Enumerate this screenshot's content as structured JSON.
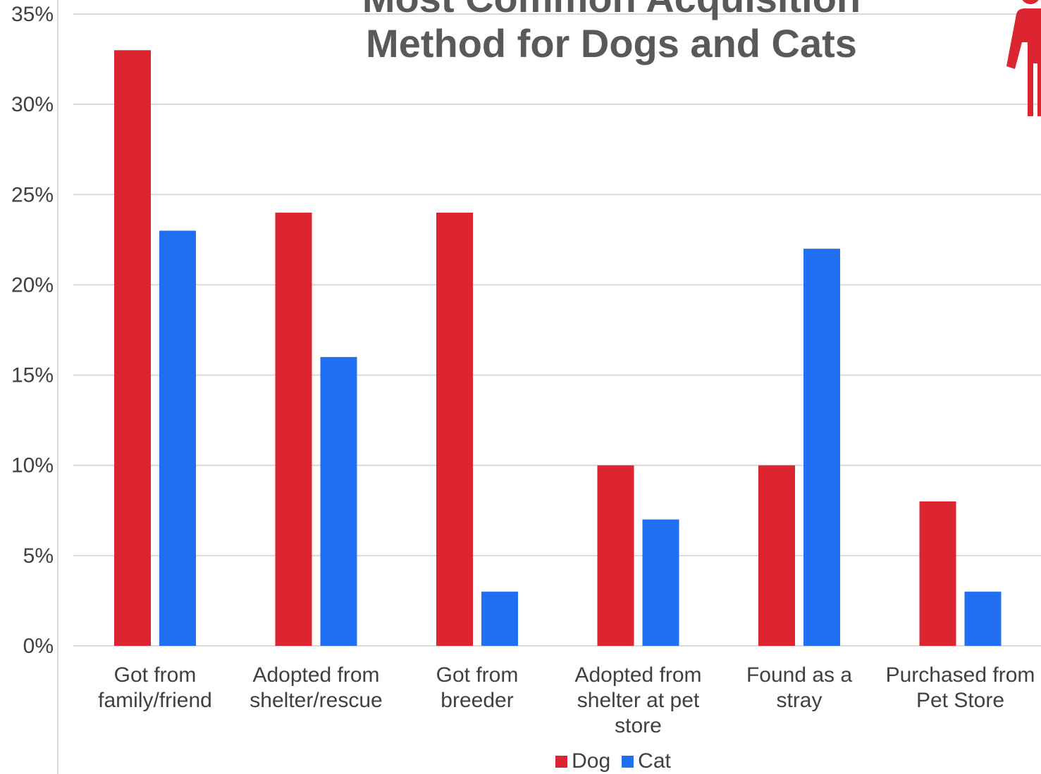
{
  "colors": {
    "dog": "#dc2531",
    "cat": "#216ff2",
    "grid": "#d9d9d9",
    "axis_text": "#404040",
    "title": "#595959"
  },
  "icons": {
    "person": "person-icon"
  },
  "chart_data": {
    "type": "bar",
    "title_lines": [
      "Most Common Acquisition",
      "Method for Dogs and Cats"
    ],
    "categories": [
      [
        "Got from",
        "family/friend"
      ],
      [
        "Adopted from",
        "shelter/rescue"
      ],
      [
        "Got from",
        "breeder"
      ],
      [
        "Adopted from",
        "shelter at pet",
        "store"
      ],
      [
        "Found as a",
        "stray"
      ],
      [
        "Purchased from",
        "Pet Store"
      ]
    ],
    "series": [
      {
        "name": "Dog",
        "color": "#dc2531",
        "values": [
          33,
          24,
          24,
          10,
          10,
          8
        ]
      },
      {
        "name": "Cat",
        "color": "#216ff2",
        "values": [
          23,
          16,
          3,
          7,
          22,
          3
        ]
      }
    ],
    "ylim": [
      0,
      35
    ],
    "yticks": [
      "0%",
      "5%",
      "10%",
      "15%",
      "20%",
      "25%",
      "30%",
      "35%"
    ],
    "grid": true,
    "legend_position": "bottom"
  }
}
